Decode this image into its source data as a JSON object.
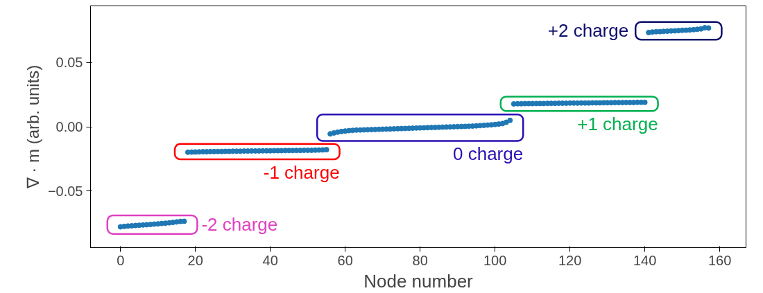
{
  "chart_data": {
    "type": "scatter",
    "xlabel": "Node number",
    "ylabel": "∇ · m (arb. units)",
    "marker": "circle",
    "grid": false,
    "xlim": [
      -8,
      167
    ],
    "ylim": [
      -0.094,
      0.094
    ],
    "xticks": [
      0,
      20,
      40,
      60,
      80,
      100,
      120,
      140,
      160
    ],
    "yticks": [
      {
        "value": -0.05,
        "label": "−0.05"
      },
      {
        "value": 0,
        "label": "0.00"
      },
      {
        "value": 0.05,
        "label": "0.05"
      }
    ],
    "series": [
      {
        "name": "-2 charge",
        "color": "#1f77b4",
        "x": [
          0,
          1,
          2,
          3,
          4,
          5,
          6,
          7,
          8,
          9,
          10,
          11,
          12,
          13,
          14,
          15,
          16,
          17
        ],
        "values": [
          -0.0778,
          -0.0775,
          -0.0772,
          -0.077,
          -0.0768,
          -0.0766,
          -0.0764,
          -0.0762,
          -0.076,
          -0.0757,
          -0.0755,
          -0.0752,
          -0.075,
          -0.0747,
          -0.0744,
          -0.074,
          -0.0736,
          -0.0735
        ]
      },
      {
        "name": "-1 charge",
        "color": "#1f77b4",
        "x": [
          18,
          19,
          20,
          21,
          22,
          23,
          24,
          25,
          26,
          27,
          28,
          29,
          30,
          31,
          32,
          33,
          34,
          35,
          36,
          37,
          38,
          39,
          40,
          41,
          42,
          43,
          44,
          45,
          46,
          47,
          48,
          49,
          50,
          51,
          52,
          53,
          54,
          55
        ],
        "values": [
          -0.0198,
          -0.0197,
          -0.0196,
          -0.0195,
          -0.0194,
          -0.0194,
          -0.0193,
          -0.0193,
          -0.0192,
          -0.0192,
          -0.0191,
          -0.0191,
          -0.019,
          -0.019,
          -0.019,
          -0.0189,
          -0.0189,
          -0.0188,
          -0.0188,
          -0.0188,
          -0.0187,
          -0.0187,
          -0.0187,
          -0.0186,
          -0.0186,
          -0.0186,
          -0.0185,
          -0.0185,
          -0.0185,
          -0.0184,
          -0.0184,
          -0.0183,
          -0.0183,
          -0.0183,
          -0.0182,
          -0.0181,
          -0.018,
          -0.0178
        ]
      },
      {
        "name": "0 charge",
        "color": "#1f77b4",
        "x": [
          56,
          57,
          58,
          59,
          60,
          61,
          62,
          63,
          64,
          65,
          66,
          67,
          68,
          69,
          70,
          71,
          72,
          73,
          74,
          75,
          76,
          77,
          78,
          79,
          80,
          81,
          82,
          83,
          84,
          85,
          86,
          87,
          88,
          89,
          90,
          91,
          92,
          93,
          94,
          95,
          96,
          97,
          98,
          99,
          100,
          101,
          102,
          103,
          104
        ],
        "values": [
          -0.0055,
          -0.0048,
          -0.0042,
          -0.0037,
          -0.0033,
          -0.003,
          -0.0028,
          -0.0026,
          -0.0025,
          -0.0024,
          -0.0023,
          -0.0022,
          -0.0021,
          -0.002,
          -0.0019,
          -0.0018,
          -0.0017,
          -0.0016,
          -0.0015,
          -0.0014,
          -0.0013,
          -0.0012,
          -0.0011,
          -0.001,
          -0.0009,
          -0.0008,
          -0.0007,
          -0.0006,
          -0.0005,
          -0.0004,
          -0.0003,
          -0.0002,
          -0.0001,
          0.0,
          0.0001,
          0.0002,
          0.0003,
          0.0004,
          0.0005,
          0.0007,
          0.0009,
          0.0011,
          0.0013,
          0.0015,
          0.0018,
          0.0021,
          0.0025,
          0.0035,
          0.005
        ]
      },
      {
        "name": "+1 charge",
        "color": "#1f77b4",
        "x": [
          105,
          106,
          107,
          108,
          109,
          110,
          111,
          112,
          113,
          114,
          115,
          116,
          117,
          118,
          119,
          120,
          121,
          122,
          123,
          124,
          125,
          126,
          127,
          128,
          129,
          130,
          131,
          132,
          133,
          134,
          135,
          136,
          137,
          138,
          139,
          140
        ],
        "values": [
          0.0178,
          0.0179,
          0.0179,
          0.018,
          0.018,
          0.018,
          0.0181,
          0.0181,
          0.0181,
          0.0182,
          0.0182,
          0.0182,
          0.0183,
          0.0183,
          0.0183,
          0.0184,
          0.0184,
          0.0184,
          0.0185,
          0.0185,
          0.0185,
          0.0186,
          0.0186,
          0.0186,
          0.0187,
          0.0187,
          0.0187,
          0.0188,
          0.0188,
          0.0188,
          0.0189,
          0.0189,
          0.0189,
          0.019,
          0.019,
          0.019
        ]
      },
      {
        "name": "+2 charge",
        "color": "#1f77b4",
        "x": [
          141,
          142,
          143,
          144,
          145,
          146,
          147,
          148,
          149,
          150,
          151,
          152,
          153,
          154,
          155,
          156,
          157
        ],
        "values": [
          0.0733,
          0.0737,
          0.0739,
          0.074,
          0.0742,
          0.0743,
          0.0745,
          0.0746,
          0.0748,
          0.075,
          0.0751,
          0.0753,
          0.0755,
          0.0758,
          0.0761,
          0.077,
          0.0768
        ]
      }
    ]
  }
}
